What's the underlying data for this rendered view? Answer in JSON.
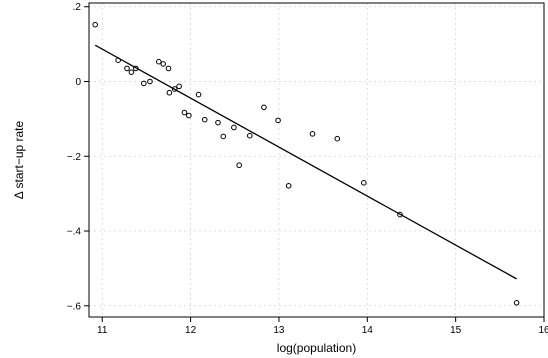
{
  "chart_data": {
    "type": "scatter",
    "title": "",
    "xlabel": "log(population)",
    "ylabel": "Δ start−up rate",
    "xlim": [
      10.85,
      16.0
    ],
    "ylim": [
      -0.63,
      0.21
    ],
    "x_ticks": [
      11,
      12,
      13,
      14,
      15,
      16
    ],
    "x_tick_labels": [
      "11",
      "12",
      "13",
      "14",
      "15",
      "16"
    ],
    "y_ticks": [
      0.2,
      0.0,
      -0.2,
      -0.4,
      -0.6
    ],
    "y_tick_labels": [
      ".2",
      "0",
      "−.2",
      "−.4",
      "−.6"
    ],
    "grid": true,
    "points": {
      "x": [
        10.92,
        11.18,
        11.28,
        11.33,
        11.38,
        11.47,
        11.54,
        11.64,
        11.69,
        11.75,
        11.76,
        11.82,
        11.87,
        11.93,
        11.98,
        12.09,
        12.16,
        12.31,
        12.37,
        12.49,
        12.55,
        12.67,
        12.83,
        12.99,
        13.11,
        13.38,
        13.66,
        13.96,
        14.37,
        15.69
      ],
      "y": [
        0.152,
        0.057,
        0.035,
        0.025,
        0.035,
        -0.005,
        0.0,
        0.053,
        0.047,
        0.035,
        -0.03,
        -0.02,
        -0.013,
        -0.083,
        -0.091,
        -0.035,
        -0.102,
        -0.11,
        -0.147,
        -0.123,
        -0.224,
        -0.145,
        -0.069,
        -0.104,
        -0.279,
        -0.14,
        -0.153,
        -0.271,
        -0.356,
        -0.592
      ]
    },
    "fit_line": {
      "x": [
        10.92,
        15.69
      ],
      "y": [
        0.097,
        -0.528
      ]
    }
  }
}
